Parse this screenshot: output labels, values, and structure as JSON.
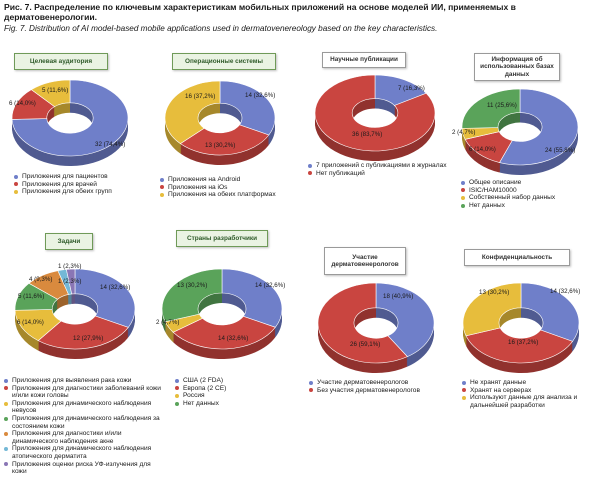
{
  "caption": {
    "ru": "Рис. 7. Распределение по ключевым характеристикам мобильных приложений на основе моделей ИИ, применяемых в дерматовенерологии.",
    "en": "Fig. 7. Distribution of AI model-based mobile applications used in dermatovenereology based on the key characteristics."
  },
  "colors": {
    "blue": "#6f7fc9",
    "red": "#c94540",
    "yellow": "#e7bd3c",
    "green": "#5aa35a",
    "orange": "#d98a3e",
    "cyan": "#74b8d6",
    "purple": "#8a76b5"
  },
  "chart_data": [
    {
      "type": "pie",
      "title": "Целевая аудитория",
      "slices": [
        {
          "label": "Приложения для пациентов",
          "value": 74.4,
          "text": "32 (74,4%)",
          "color": "#6f7fc9"
        },
        {
          "label": "Приложения для врачей",
          "value": 14.0,
          "text": "6 (14,0%)",
          "color": "#c94540"
        },
        {
          "label": "Приложения для обеих групп",
          "value": 11.6,
          "text": "5 (11,6%)",
          "color": "#e7bd3c"
        }
      ]
    },
    {
      "type": "pie",
      "title": "Операционные системы",
      "slices": [
        {
          "label": "Приложения на Android",
          "value": 32.6,
          "text": "14 (32,6%)",
          "color": "#6f7fc9"
        },
        {
          "label": "Приложения на iOs",
          "value": 30.2,
          "text": "13 (30,2%)",
          "color": "#c94540"
        },
        {
          "label": "Приложения на обеих платформах",
          "value": 37.2,
          "text": "16 (37,2%)",
          "color": "#e7bd3c"
        }
      ]
    },
    {
      "type": "pie",
      "title": "Научные публикации",
      "slices": [
        {
          "label": "7 приложений с публикациями в журналах",
          "value": 16.3,
          "text": "7 (16,3%)",
          "color": "#6f7fc9"
        },
        {
          "label": "Нет публикаций",
          "value": 83.7,
          "text": "36 (83,7%)",
          "color": "#c94540"
        }
      ]
    },
    {
      "type": "pie",
      "title": "Информация об использованных базах данных",
      "slices": [
        {
          "label": "Общее описание",
          "value": 55.8,
          "text": "24 (55,8%)",
          "color": "#6f7fc9"
        },
        {
          "label": "ISIC/HAM10000",
          "value": 14.0,
          "text": "6 (14,0%)",
          "color": "#c94540"
        },
        {
          "label": "Собственный набор данных",
          "value": 4.7,
          "text": "2 (4,7%)",
          "color": "#e7bd3c"
        },
        {
          "label": "Нет данных",
          "value": 25.6,
          "text": "11 (25,6%)",
          "color": "#5aa35a"
        }
      ]
    },
    {
      "type": "pie",
      "title": "Задачи",
      "slices": [
        {
          "label": "Приложения для выявления рака кожи",
          "value": 32.6,
          "text": "14 (32,6%)",
          "color": "#6f7fc9"
        },
        {
          "label": "Приложения для диагностики заболеваний кожи и/или кожи головы",
          "value": 27.9,
          "text": "12 (27,9%)",
          "color": "#c94540"
        },
        {
          "label": "Приложения для динамического наблюдения невусов",
          "value": 14.0,
          "text": "6 (14,0%)",
          "color": "#e7bd3c"
        },
        {
          "label": "Приложения для динамического наблюдения за состоянием кожи",
          "value": 11.6,
          "text": "5 (11,6%)",
          "color": "#5aa35a"
        },
        {
          "label": "Приложения для диагностики и/или динамического наблюдения акне",
          "value": 9.3,
          "text": "4 (9,3%)",
          "color": "#d98a3e"
        },
        {
          "label": "Приложения для динамического наблюдения атопического дерматита",
          "value": 2.3,
          "text": "1 (2,3%)",
          "color": "#74b8d6"
        },
        {
          "label": "Приложения оценки риска УФ-излучения для кожи",
          "value": 2.3,
          "text": "1 (2,3%)",
          "color": "#8a76b5"
        }
      ]
    },
    {
      "type": "pie",
      "title": "Страны разработчики",
      "slices": [
        {
          "label": "США (2 FDA)",
          "value": 32.6,
          "text": "14 (32,6%)",
          "color": "#6f7fc9"
        },
        {
          "label": "Европа (2 CE)",
          "value": 32.6,
          "text": "14 (32,6%)",
          "color": "#c94540"
        },
        {
          "label": "Россия",
          "value": 4.7,
          "text": "2 (4,7%)",
          "color": "#e7bd3c"
        },
        {
          "label": "Нет данных",
          "value": 30.2,
          "text": "13 (30,2%)",
          "color": "#5aa35a"
        }
      ]
    },
    {
      "type": "pie",
      "title": "Участие дерматовенерологов",
      "slices": [
        {
          "label": "Участие дерматовенерологов",
          "value": 40.9,
          "text": "18 (40,9%)",
          "color": "#6f7fc9"
        },
        {
          "label": "Без участия дерматовенерологов",
          "value": 59.1,
          "text": "26 (59,1%)",
          "color": "#c94540"
        }
      ]
    },
    {
      "type": "pie",
      "title": "Конфиденциальность",
      "slices": [
        {
          "label": "Не хранят данные",
          "value": 32.6,
          "text": "14 (32,6%)",
          "color": "#6f7fc9"
        },
        {
          "label": "Хранят на серверах",
          "value": 37.2,
          "text": "16 (37,2%)",
          "color": "#c94540"
        },
        {
          "label": "Используют данные для анализа и дальнейшей разработки",
          "value": 30.2,
          "text": "13 (30,2%)",
          "color": "#e7bd3c"
        }
      ]
    }
  ]
}
